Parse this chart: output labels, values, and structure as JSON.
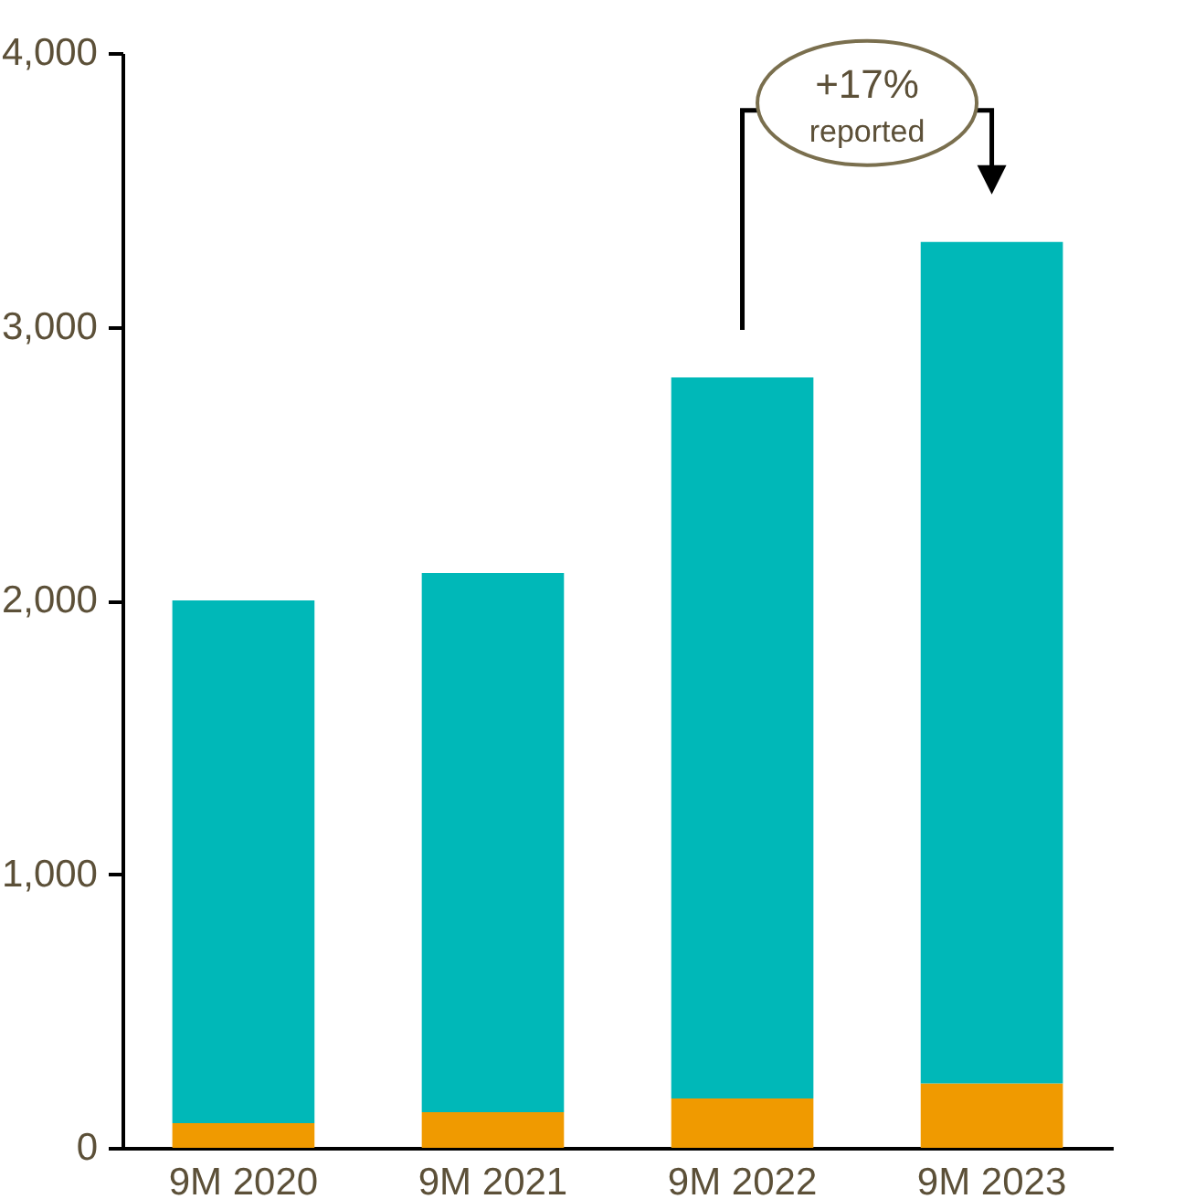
{
  "chart_data": {
    "type": "bar",
    "stacked": true,
    "categories": [
      "9M 2020",
      "9M 2021",
      "9M 2022",
      "9M 2023"
    ],
    "series": [
      {
        "color": "#f09a00",
        "values": [
          90,
          130,
          180,
          235
        ]
      },
      {
        "color": "#00b8b8",
        "values": [
          1910,
          1970,
          2635,
          3075
        ]
      }
    ],
    "ylim": [
      0,
      4000
    ],
    "yticks": [
      {
        "value": 0,
        "label": "0"
      },
      {
        "value": 1000,
        "label": "1,000"
      },
      {
        "value": 2000,
        "label": "2,000"
      },
      {
        "value": 3000,
        "label": "3,000"
      },
      {
        "value": 4000,
        "label": "4,000"
      }
    ],
    "grid": false,
    "legend": false,
    "annotations": [
      "+17% reported"
    ]
  }
}
